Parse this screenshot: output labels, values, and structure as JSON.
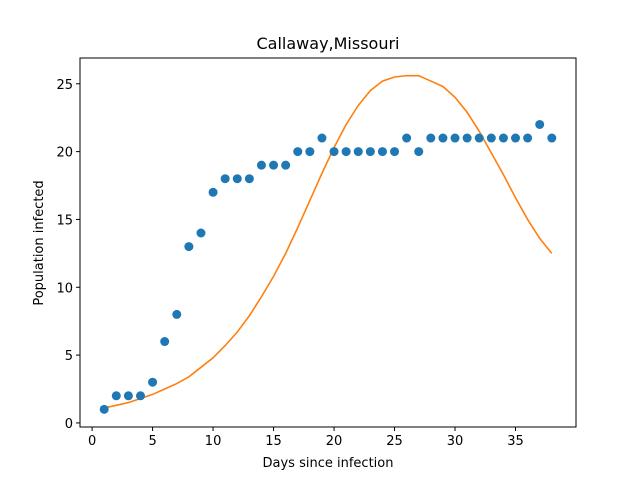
{
  "chart_data": {
    "type": "scatter",
    "title": "Callaway,Missouri",
    "xlabel": "Days since infection",
    "ylabel": "Population infected",
    "xlim": [
      -1,
      40
    ],
    "ylim": [
      -0.3,
      26.9
    ],
    "xticks": [
      0,
      5,
      10,
      15,
      20,
      25,
      30,
      35
    ],
    "yticks": [
      0,
      5,
      10,
      15,
      20,
      25
    ],
    "grid": false,
    "legend": "none",
    "series": [
      {
        "kind": "scatter",
        "color": "#1f77b4",
        "x": [
          1,
          2,
          3,
          4,
          5,
          6,
          7,
          8,
          9,
          10,
          11,
          12,
          13,
          14,
          15,
          16,
          17,
          18,
          19,
          20,
          21,
          22,
          23,
          24,
          25,
          26,
          27,
          28,
          29,
          30,
          31,
          32,
          33,
          34,
          35,
          36,
          37,
          38
        ],
        "y": [
          1,
          2,
          2,
          2,
          3,
          6,
          8,
          13,
          14,
          17,
          18,
          18,
          18,
          19,
          19,
          19,
          20,
          20,
          21,
          20,
          20,
          20,
          20,
          20,
          20,
          21,
          20,
          21,
          21,
          21,
          21,
          21,
          21,
          21,
          21,
          21,
          22,
          21
        ]
      },
      {
        "kind": "line",
        "color": "#ff7f0e",
        "x": [
          1,
          2,
          3,
          4,
          5,
          6,
          7,
          8,
          9,
          10,
          11,
          12,
          13,
          14,
          15,
          16,
          17,
          18,
          19,
          20,
          21,
          22,
          23,
          24,
          25,
          26,
          27,
          28,
          29,
          30,
          31,
          32,
          33,
          34,
          35,
          36,
          37,
          38
        ],
        "y": [
          1.1,
          1.3,
          1.5,
          1.8,
          2.1,
          2.5,
          2.9,
          3.4,
          4.1,
          4.8,
          5.7,
          6.7,
          7.9,
          9.3,
          10.8,
          12.5,
          14.4,
          16.4,
          18.4,
          20.3,
          22.0,
          23.4,
          24.5,
          25.2,
          25.5,
          25.6,
          25.6,
          25.2,
          24.8,
          24.0,
          22.9,
          21.5,
          19.9,
          18.3,
          16.6,
          15.0,
          13.6,
          12.5
        ]
      }
    ]
  }
}
